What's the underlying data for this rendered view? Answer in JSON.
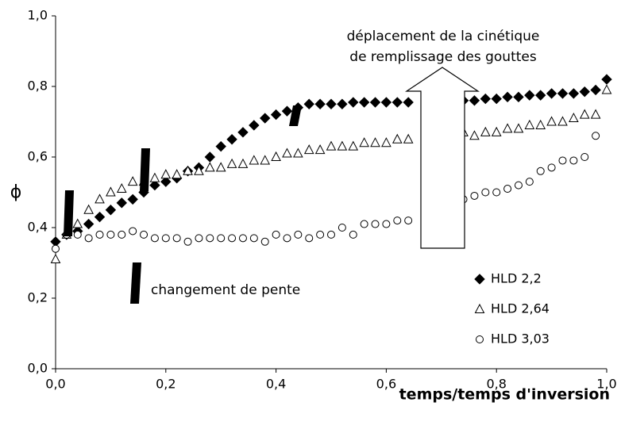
{
  "chart_data": {
    "type": "scatter",
    "xlabel": "temps/temps d'inversion",
    "ylabel": "ϕ",
    "annotations": [
      "déplacement de la cinétique",
      "de remplissage des gouttes",
      "changement de pente"
    ],
    "xlim": [
      0,
      1
    ],
    "ylim": [
      0,
      1
    ],
    "xticks": [
      {
        "value": 0,
        "label": "0,0"
      },
      {
        "value": 0.2,
        "label": "0,2"
      },
      {
        "value": 0.4,
        "label": "0,4"
      },
      {
        "value": 0.6,
        "label": "0,6"
      },
      {
        "value": 0.8,
        "label": "0,8"
      },
      {
        "value": 1,
        "label": "1,0"
      }
    ],
    "yticks": [
      {
        "value": 0,
        "label": "0,0"
      },
      {
        "value": 0.2,
        "label": "0,2"
      },
      {
        "value": 0.4,
        "label": "0,4"
      },
      {
        "value": 0.6,
        "label": "0,6"
      },
      {
        "value": 0.8,
        "label": "0,8"
      },
      {
        "value": 1,
        "label": "1,0"
      }
    ],
    "series": [
      {
        "name": "HLD 2,2",
        "color": "#000000",
        "marker": "diamond",
        "filled": true,
        "x": [
          0,
          0.02,
          0.04,
          0.06,
          0.08,
          0.1,
          0.12,
          0.14,
          0.16,
          0.18,
          0.2,
          0.22,
          0.24,
          0.26,
          0.28,
          0.3,
          0.32,
          0.34,
          0.36,
          0.38,
          0.4,
          0.42,
          0.44,
          0.46,
          0.48,
          0.5,
          0.52,
          0.54,
          0.56,
          0.58,
          0.6,
          0.62,
          0.64,
          0.74,
          0.76,
          0.78,
          0.8,
          0.82,
          0.84,
          0.86,
          0.88,
          0.9,
          0.92,
          0.94,
          0.96,
          0.98,
          1.0
        ],
        "values": [
          0.36,
          0.38,
          0.39,
          0.41,
          0.43,
          0.45,
          0.47,
          0.48,
          0.5,
          0.52,
          0.53,
          0.54,
          0.56,
          0.57,
          0.6,
          0.63,
          0.65,
          0.67,
          0.69,
          0.71,
          0.72,
          0.73,
          0.74,
          0.75,
          0.75,
          0.75,
          0.75,
          0.755,
          0.755,
          0.755,
          0.755,
          0.755,
          0.755,
          0.76,
          0.76,
          0.765,
          0.765,
          0.77,
          0.77,
          0.775,
          0.775,
          0.78,
          0.78,
          0.78,
          0.785,
          0.79,
          0.82
        ]
      },
      {
        "name": "HLD 2,64",
        "color": "#000000",
        "marker": "triangle",
        "filled": false,
        "x": [
          0,
          0.02,
          0.04,
          0.06,
          0.08,
          0.1,
          0.12,
          0.14,
          0.16,
          0.18,
          0.2,
          0.22,
          0.24,
          0.26,
          0.28,
          0.3,
          0.32,
          0.34,
          0.36,
          0.38,
          0.4,
          0.42,
          0.44,
          0.46,
          0.48,
          0.5,
          0.52,
          0.54,
          0.56,
          0.58,
          0.6,
          0.62,
          0.64,
          0.74,
          0.76,
          0.78,
          0.8,
          0.82,
          0.84,
          0.86,
          0.88,
          0.9,
          0.92,
          0.94,
          0.96,
          0.98,
          1.0
        ],
        "values": [
          0.31,
          0.38,
          0.41,
          0.45,
          0.48,
          0.5,
          0.51,
          0.53,
          0.53,
          0.54,
          0.55,
          0.55,
          0.56,
          0.56,
          0.57,
          0.57,
          0.58,
          0.58,
          0.59,
          0.59,
          0.6,
          0.61,
          0.61,
          0.62,
          0.62,
          0.63,
          0.63,
          0.63,
          0.64,
          0.64,
          0.64,
          0.65,
          0.65,
          0.67,
          0.66,
          0.67,
          0.67,
          0.68,
          0.68,
          0.69,
          0.69,
          0.7,
          0.7,
          0.71,
          0.72,
          0.72,
          0.79
        ]
      },
      {
        "name": "HLD 3,03",
        "color": "#000000",
        "marker": "circle",
        "filled": false,
        "x": [
          0,
          0.02,
          0.04,
          0.06,
          0.08,
          0.1,
          0.12,
          0.14,
          0.16,
          0.18,
          0.2,
          0.22,
          0.24,
          0.26,
          0.28,
          0.3,
          0.32,
          0.34,
          0.36,
          0.38,
          0.4,
          0.42,
          0.44,
          0.46,
          0.48,
          0.5,
          0.52,
          0.54,
          0.56,
          0.58,
          0.6,
          0.62,
          0.64,
          0.74,
          0.76,
          0.78,
          0.8,
          0.82,
          0.84,
          0.86,
          0.88,
          0.9,
          0.92,
          0.94,
          0.96,
          0.98
        ],
        "values": [
          0.34,
          0.38,
          0.38,
          0.37,
          0.38,
          0.38,
          0.38,
          0.39,
          0.38,
          0.37,
          0.37,
          0.37,
          0.36,
          0.37,
          0.37,
          0.37,
          0.37,
          0.37,
          0.37,
          0.36,
          0.38,
          0.37,
          0.38,
          0.37,
          0.38,
          0.38,
          0.4,
          0.38,
          0.41,
          0.41,
          0.41,
          0.42,
          0.42,
          0.48,
          0.49,
          0.5,
          0.5,
          0.51,
          0.52,
          0.53,
          0.56,
          0.57,
          0.59,
          0.59,
          0.6,
          0.66
        ]
      }
    ]
  }
}
